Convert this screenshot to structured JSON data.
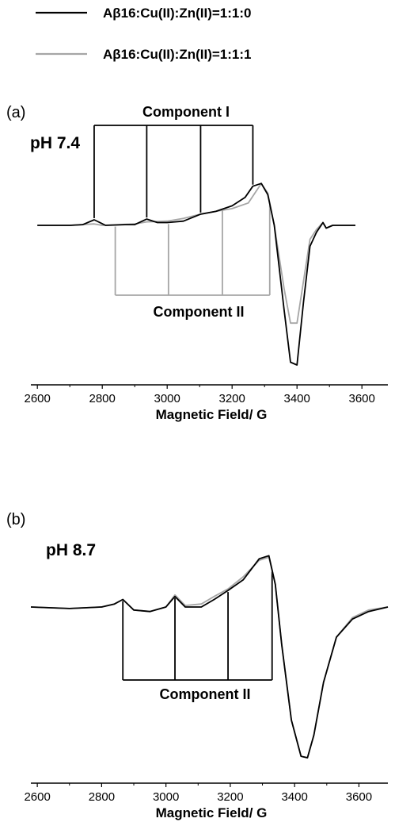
{
  "colors": {
    "series_black": "#000000",
    "series_gray": "#a6a6a6",
    "axis": "#000000"
  },
  "legend": {
    "entries": [
      {
        "label": "Aβ16:Cu(II):Zn(II)=1:1:0",
        "color": "#000000"
      },
      {
        "label": "Aβ16:Cu(II):Zn(II)=1:1:1",
        "color": "#a6a6a6"
      }
    ]
  },
  "chart_data": [
    {
      "type": "line",
      "panel_label": "(a)",
      "condition": "pH 7.4",
      "xlabel": "Magnetic Field/ G",
      "ylabel": "",
      "xlim": [
        2580,
        3680
      ],
      "xticks": [
        2600,
        2800,
        3000,
        3200,
        3400,
        3600
      ],
      "grid": false,
      "hyperfine_markers": [
        {
          "label": "Component I",
          "color": "#000000",
          "x": [
            2775,
            2937,
            3103,
            3264
          ]
        },
        {
          "label": "Component II",
          "color": "#a6a6a6",
          "x": [
            2840,
            3004,
            3170,
            3316
          ]
        }
      ],
      "series": [
        {
          "name": "Aβ16:Cu(II):Zn(II)=1:1:0",
          "color": "#000000",
          "points": [
            [
              2600,
              0
            ],
            [
              2700,
              0
            ],
            [
              2740,
              0.005
            ],
            [
              2775,
              0.04
            ],
            [
              2810,
              0
            ],
            [
              2870,
              0.005
            ],
            [
              2900,
              0.005
            ],
            [
              2937,
              0.045
            ],
            [
              2970,
              0.02
            ],
            [
              3000,
              0.02
            ],
            [
              3050,
              0.03
            ],
            [
              3103,
              0.08
            ],
            [
              3150,
              0.1
            ],
            [
              3200,
              0.14
            ],
            [
              3240,
              0.2
            ],
            [
              3264,
              0.28
            ],
            [
              3290,
              0.3
            ],
            [
              3310,
              0.22
            ],
            [
              3330,
              0
            ],
            [
              3360,
              -0.6
            ],
            [
              3380,
              -0.98
            ],
            [
              3400,
              -1.0
            ],
            [
              3420,
              -0.55
            ],
            [
              3440,
              -0.15
            ],
            [
              3460,
              -0.05
            ],
            [
              3480,
              0.02
            ],
            [
              3490,
              -0.02
            ],
            [
              3510,
              0
            ],
            [
              3580,
              0
            ]
          ]
        },
        {
          "name": "Aβ16:Cu(II):Zn(II)=1:1:1",
          "color": "#a6a6a6",
          "points": [
            [
              2600,
              0
            ],
            [
              2700,
              0
            ],
            [
              2775,
              0.01
            ],
            [
              2800,
              0
            ],
            [
              2850,
              0.005
            ],
            [
              2900,
              0.01
            ],
            [
              2937,
              0.025
            ],
            [
              3000,
              0.03
            ],
            [
              3050,
              0.05
            ],
            [
              3103,
              0.08
            ],
            [
              3150,
              0.1
            ],
            [
              3200,
              0.12
            ],
            [
              3250,
              0.16
            ],
            [
              3290,
              0.3
            ],
            [
              3310,
              0.23
            ],
            [
              3330,
              0
            ],
            [
              3360,
              -0.45
            ],
            [
              3380,
              -0.7
            ],
            [
              3400,
              -0.7
            ],
            [
              3420,
              -0.4
            ],
            [
              3440,
              -0.1
            ],
            [
              3460,
              -0.03
            ],
            [
              3480,
              0.02
            ],
            [
              3490,
              -0.02
            ],
            [
              3510,
              0
            ],
            [
              3580,
              0
            ]
          ]
        }
      ]
    },
    {
      "type": "line",
      "panel_label": "(b)",
      "condition": "pH 8.7",
      "xlabel": "Magnetic Field/ G",
      "ylabel": "",
      "xlim": [
        2580,
        3690
      ],
      "xticks": [
        2600,
        2800,
        3000,
        3200,
        3400,
        3600
      ],
      "grid": false,
      "hyperfine_markers": [
        {
          "label": "Component II",
          "color": "#000000",
          "x": [
            2866,
            3028,
            3193,
            3330
          ]
        }
      ],
      "series": [
        {
          "name": "Aβ16:Cu(II):Zn(II)=1:1:0",
          "color": "#000000",
          "points": [
            [
              2580,
              0
            ],
            [
              2700,
              -0.01
            ],
            [
              2800,
              0
            ],
            [
              2840,
              0.02
            ],
            [
              2866,
              0.05
            ],
            [
              2900,
              -0.02
            ],
            [
              2950,
              -0.03
            ],
            [
              3000,
              0
            ],
            [
              3028,
              0.07
            ],
            [
              3060,
              0
            ],
            [
              3110,
              0
            ],
            [
              3150,
              0.05
            ],
            [
              3193,
              0.11
            ],
            [
              3240,
              0.18
            ],
            [
              3290,
              0.32
            ],
            [
              3320,
              0.34
            ],
            [
              3340,
              0.15
            ],
            [
              3360,
              -0.25
            ],
            [
              3390,
              -0.75
            ],
            [
              3420,
              -0.99
            ],
            [
              3440,
              -1.0
            ],
            [
              3460,
              -0.85
            ],
            [
              3490,
              -0.5
            ],
            [
              3530,
              -0.2
            ],
            [
              3580,
              -0.08
            ],
            [
              3630,
              -0.03
            ],
            [
              3690,
              0
            ]
          ]
        },
        {
          "name": "Aβ16:Cu(II):Zn(II)=1:1:1",
          "color": "#a6a6a6",
          "points": [
            [
              2580,
              0
            ],
            [
              2700,
              -0.01
            ],
            [
              2800,
              0
            ],
            [
              2840,
              0.02
            ],
            [
              2866,
              0.05
            ],
            [
              2900,
              -0.02
            ],
            [
              2950,
              -0.03
            ],
            [
              3000,
              0
            ],
            [
              3028,
              0.08
            ],
            [
              3060,
              0.01
            ],
            [
              3110,
              0.02
            ],
            [
              3150,
              0.07
            ],
            [
              3193,
              0.12
            ],
            [
              3240,
              0.2
            ],
            [
              3290,
              0.31
            ],
            [
              3320,
              0.33
            ],
            [
              3340,
              0.15
            ],
            [
              3360,
              -0.25
            ],
            [
              3390,
              -0.75
            ],
            [
              3420,
              -0.99
            ],
            [
              3440,
              -1.0
            ],
            [
              3460,
              -0.85
            ],
            [
              3490,
              -0.5
            ],
            [
              3530,
              -0.2
            ],
            [
              3580,
              -0.07
            ],
            [
              3630,
              -0.02
            ],
            [
              3690,
              0
            ]
          ]
        }
      ]
    }
  ]
}
